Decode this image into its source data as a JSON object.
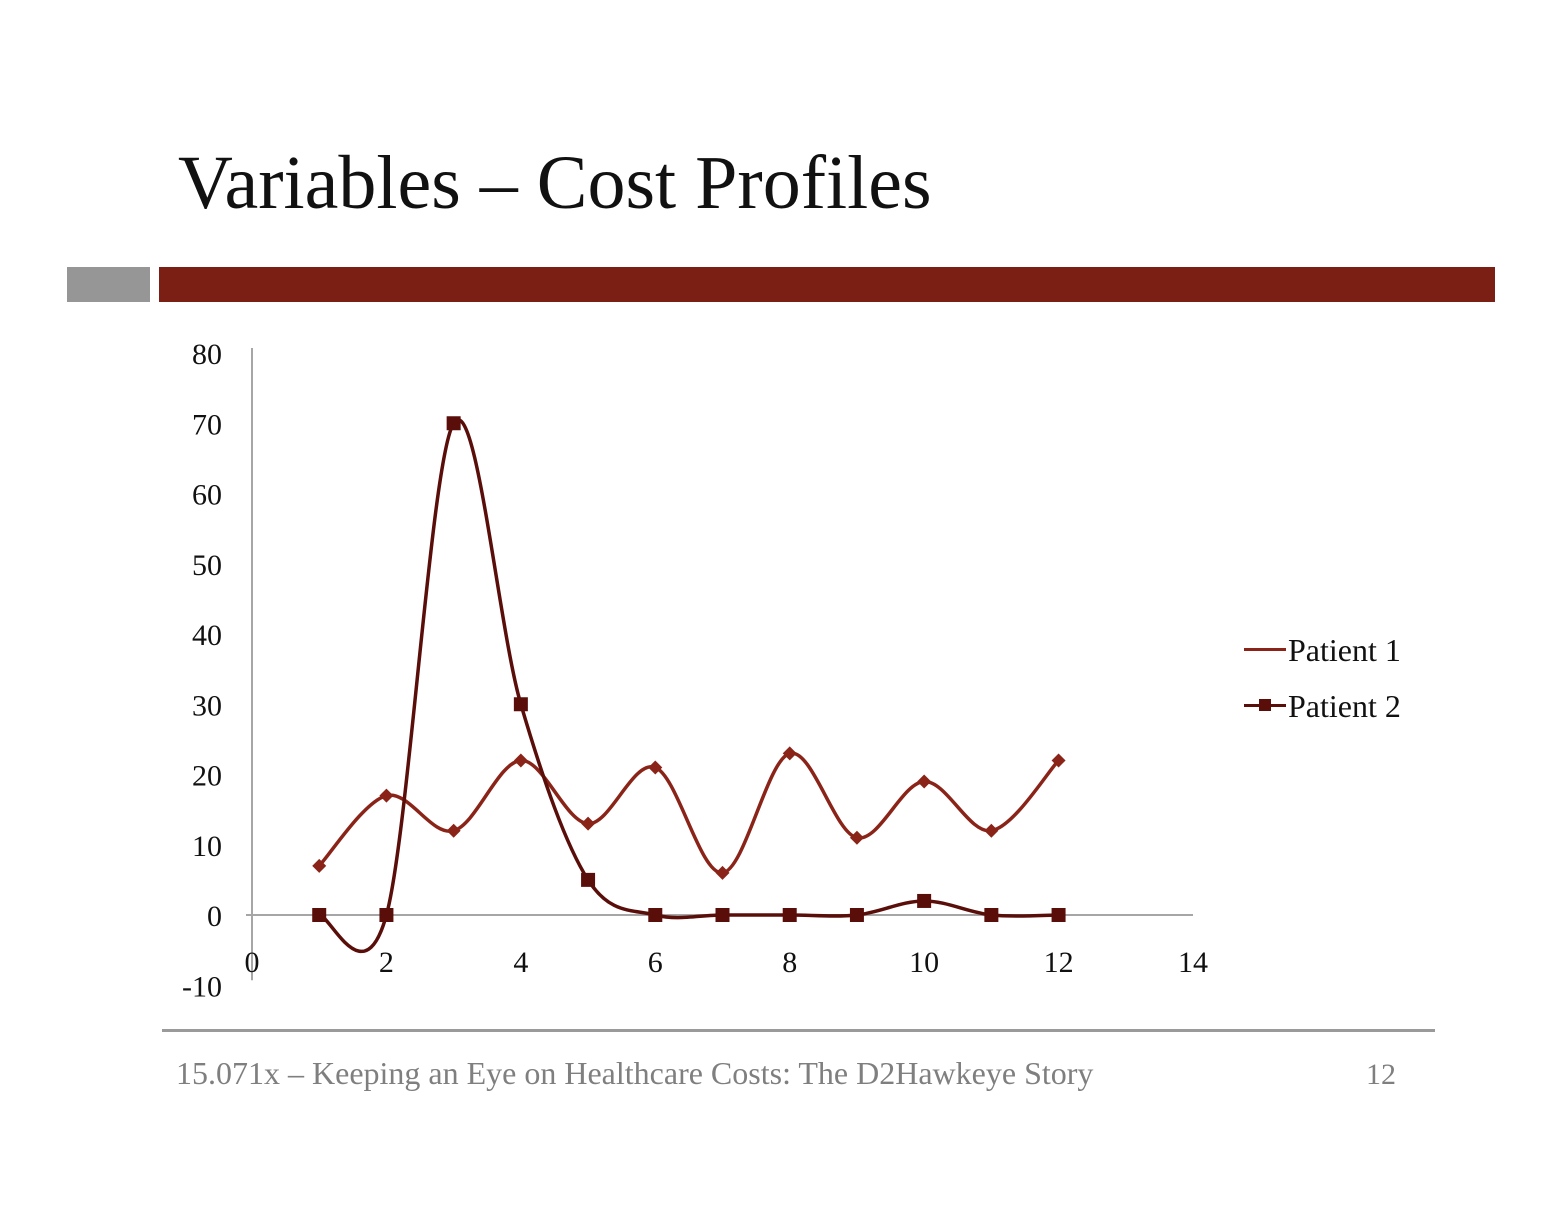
{
  "slide": {
    "title": "Variables – Cost Profiles",
    "footer": "15.071x – Keeping an Eye on Healthcare Costs: The D2Hawkeye Story",
    "page_number": "12"
  },
  "colors": {
    "accent_red": "#7b1f14",
    "accent_gray": "#969696",
    "patient1": "#8b2418",
    "patient2": "#5a0e0a",
    "axis": "#a6a6a6"
  },
  "chart_data": {
    "type": "scatter",
    "xlim": [
      0,
      14
    ],
    "ylim": [
      -10,
      80
    ],
    "x_ticks": [
      0,
      2,
      4,
      6,
      8,
      10,
      12,
      14
    ],
    "y_ticks": [
      -10,
      0,
      10,
      20,
      30,
      40,
      50,
      60,
      70,
      80
    ],
    "legend_position": "right",
    "smoothed_lines": true,
    "series": [
      {
        "name": "Patient 1",
        "marker": "diamond",
        "x": [
          1,
          2,
          3,
          4,
          5,
          6,
          7,
          8,
          9,
          10,
          11,
          12
        ],
        "values": [
          7,
          17,
          12,
          22,
          13,
          21,
          6,
          23,
          11,
          19,
          12,
          22
        ]
      },
      {
        "name": "Patient 2",
        "marker": "square",
        "x": [
          1,
          2,
          3,
          4,
          5,
          6,
          7,
          8,
          9,
          10,
          11,
          12
        ],
        "values": [
          0,
          0,
          70,
          30,
          5,
          0,
          0,
          0,
          0,
          2,
          0,
          0
        ]
      }
    ]
  }
}
